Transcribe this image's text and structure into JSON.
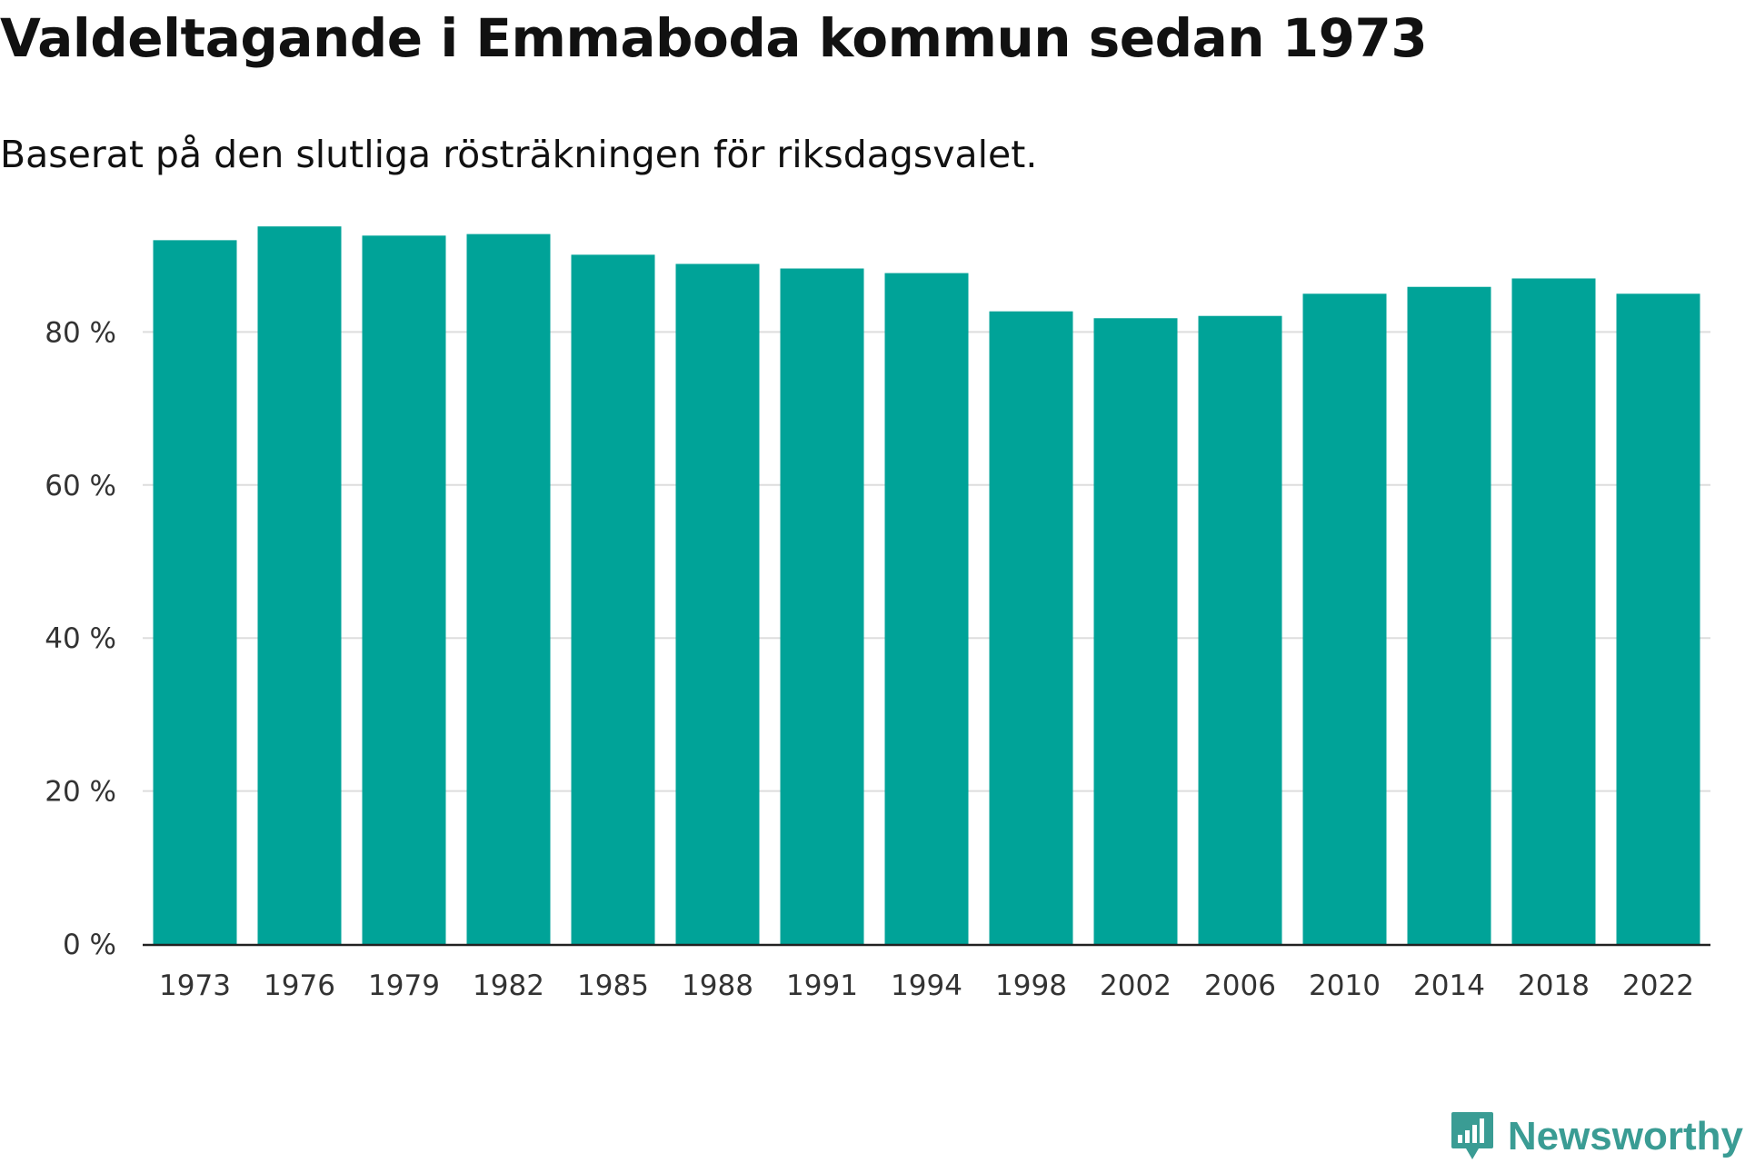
{
  "title": "Valdeltagande i Emmaboda kommun sedan 1973",
  "subtitle": "Baserat på den slutliga rösträkningen för riksdagsvalet.",
  "brand": {
    "name": "Newsworthy",
    "icon": "newsworthy-logo-icon",
    "color": "#3a9c94"
  },
  "colors": {
    "bar": "#00a398",
    "grid": "#dddddd",
    "axis": "#222222"
  },
  "chart_data": {
    "type": "bar",
    "title": "Valdeltagande i Emmaboda kommun sedan 1973",
    "subtitle": "Baserat på den slutliga rösträkningen för riksdagsvalet.",
    "xlabel": "",
    "ylabel": "",
    "categories": [
      "1973",
      "1976",
      "1979",
      "1982",
      "1985",
      "1988",
      "1991",
      "1994",
      "1998",
      "2002",
      "2006",
      "2010",
      "2014",
      "2018",
      "2022"
    ],
    "values": [
      92.0,
      93.8,
      92.6,
      92.8,
      90.1,
      88.9,
      88.3,
      87.7,
      82.7,
      81.8,
      82.1,
      85.0,
      85.9,
      87.0,
      85.0
    ],
    "ylim": [
      0,
      100
    ],
    "yticks": [
      0,
      20,
      40,
      60,
      80
    ],
    "ytick_labels": [
      "0 %",
      "20 %",
      "40 %",
      "60 %",
      "80 %"
    ],
    "grid": true,
    "legend": "none"
  }
}
